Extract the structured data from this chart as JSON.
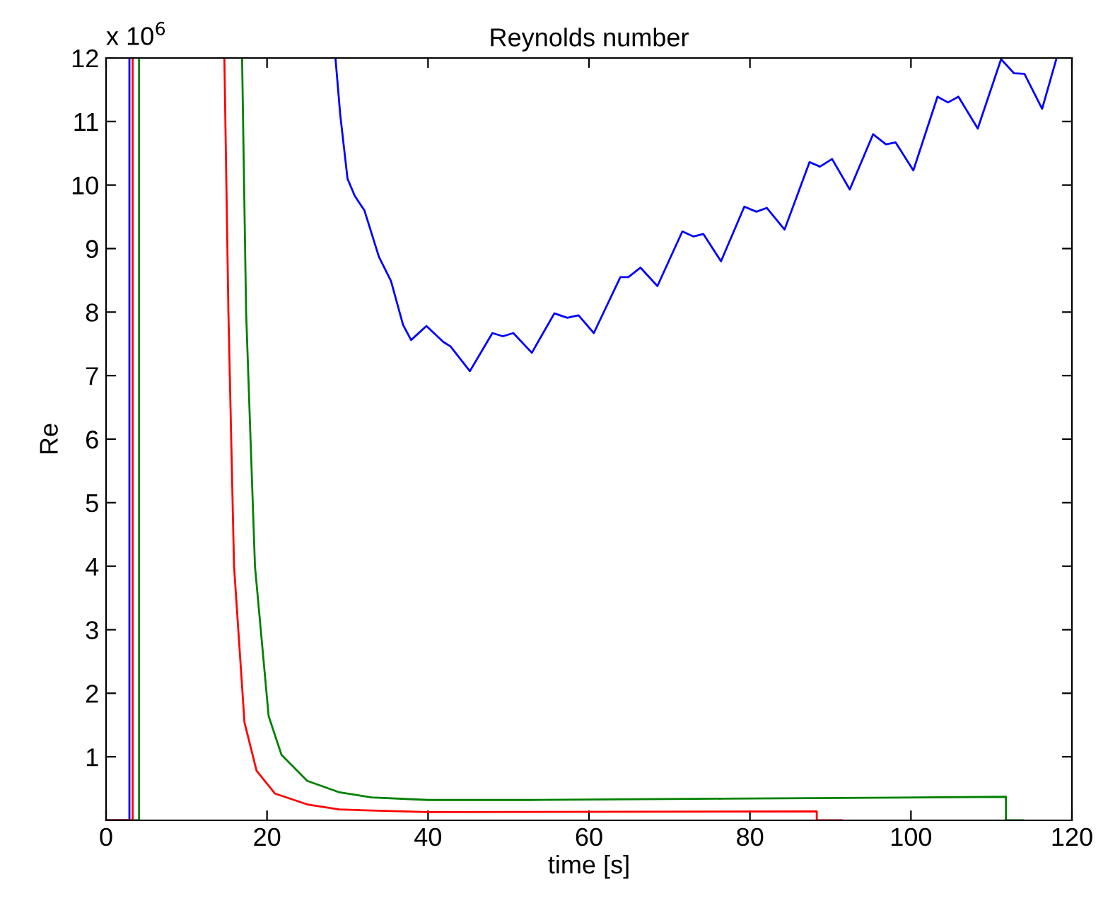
{
  "chart_data": {
    "type": "line",
    "title": "Reynolds number",
    "xlabel": "time [s]",
    "ylabel": "Re",
    "annotations": [
      "x 10$^{6}$"
    ],
    "xlim": [
      0,
      120
    ],
    "xticks": [
      0,
      20,
      40,
      60,
      80,
      100,
      120
    ],
    "ylim": [
      0,
      12
    ],
    "yticks": [
      1,
      2,
      3,
      4,
      5,
      6,
      7,
      8,
      9,
      10,
      11,
      12
    ],
    "grid": false,
    "series": [
      {
        "color": "#0000ff",
        "x": [
          0,
          2.9,
          2.9,
          null,
          28.5,
          29.1,
          30.0,
          30.9,
          32.1,
          33.9,
          35.4,
          36.9,
          37.9,
          39.8,
          41.9,
          42.8,
          45.2,
          48.0,
          49.3,
          50.6,
          52.9,
          55.7,
          57.3,
          58.7,
          60.6,
          63.9,
          64.9,
          66.4,
          68.5,
          71.6,
          73.0,
          74.2,
          76.4,
          79.3,
          80.8,
          82.1,
          84.3,
          87.4,
          88.7,
          90.2,
          92.4,
          95.3,
          96.9,
          98.1,
          100.3,
          103.3,
          104.6,
          105.9,
          108.3,
          111.2,
          112.8,
          114.1,
          116.3,
          118.1
        ],
        "values": [
          0,
          0,
          12,
          null,
          12,
          11.1,
          10.1,
          9.83,
          9.6,
          8.87,
          8.49,
          7.8,
          7.56,
          7.78,
          7.53,
          7.46,
          7.07,
          7.67,
          7.62,
          7.67,
          7.36,
          7.98,
          7.91,
          7.95,
          7.67,
          8.55,
          8.55,
          8.7,
          8.41,
          9.27,
          9.19,
          9.23,
          8.8,
          9.66,
          9.58,
          9.64,
          9.3,
          10.36,
          10.29,
          10.41,
          9.93,
          10.8,
          10.64,
          10.67,
          10.23,
          11.39,
          11.3,
          11.39,
          10.89,
          11.98,
          11.76,
          11.75,
          11.2,
          12
        ]
      },
      {
        "color": "#008000",
        "x": [
          0,
          4.1,
          4.1,
          null,
          16.9,
          17.4,
          18.5,
          20.2,
          21.8,
          25,
          29,
          33,
          40,
          52.8,
          76.6,
          111.8,
          111.8,
          113.9
        ],
        "values": [
          0,
          0,
          12,
          null,
          12,
          8,
          4,
          1.64,
          1.03,
          0.62,
          0.44,
          0.36,
          0.32,
          0.32,
          0.34,
          0.37,
          0,
          0
        ]
      },
      {
        "color": "#ff0000",
        "x": [
          0,
          3.3,
          3.3,
          null,
          14.7,
          15.2,
          15.9,
          17.2,
          18.7,
          21.0,
          25,
          29,
          40,
          88.3,
          88.3,
          91.4
        ],
        "values": [
          0,
          0,
          12,
          null,
          12,
          8,
          4,
          1.54,
          0.78,
          0.42,
          0.25,
          0.17,
          0.13,
          0.14,
          0,
          0
        ]
      }
    ]
  }
}
